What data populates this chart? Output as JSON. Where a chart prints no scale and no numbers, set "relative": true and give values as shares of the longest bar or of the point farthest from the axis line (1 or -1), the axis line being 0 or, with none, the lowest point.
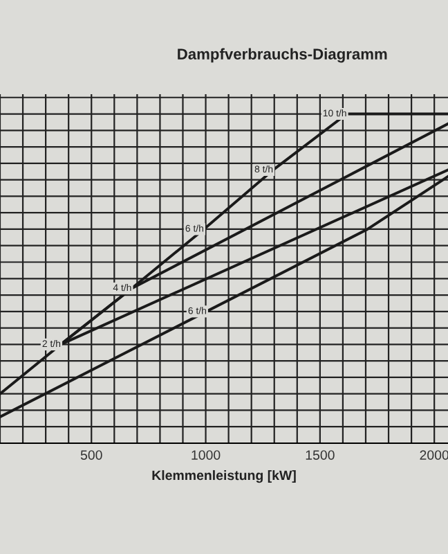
{
  "chart_data": {
    "type": "line",
    "title": "Dampfverbrauchs-Diagramm",
    "xlabel": "Klemmenleistung [kW]",
    "relative": true,
    "grid": true,
    "legend": false,
    "marker": "none",
    "line_style": "solid",
    "xlim": [
      100,
      2060
    ],
    "xticks": [
      {
        "value": 100,
        "label": null
      },
      {
        "value": 200,
        "label": null
      },
      {
        "value": 300,
        "label": null
      },
      {
        "value": 400,
        "label": null
      },
      500,
      {
        "value": 600,
        "label": null
      },
      {
        "value": 700,
        "label": null
      },
      {
        "value": 800,
        "label": null
      },
      {
        "value": 900,
        "label": null
      },
      1000,
      {
        "value": 1100,
        "label": null
      },
      {
        "value": 1200,
        "label": null
      },
      {
        "value": 1300,
        "label": null
      },
      {
        "value": 1400,
        "label": null
      },
      1500,
      {
        "value": 1600,
        "label": null
      },
      {
        "value": 1700,
        "label": null
      },
      {
        "value": 1800,
        "label": null
      },
      {
        "value": 1900,
        "label": null
      },
      2000
    ],
    "series": [
      {
        "color": "#1a1a1a",
        "x": [
          100,
          366,
          676,
          992,
          1295,
          1617,
          2060
        ],
        "values": [
          0.15,
          0.3,
          0.47,
          0.65,
          0.83,
          1.0,
          1.0
        ]
      },
      {
        "color": "#1a1a1a",
        "x": [
          366,
          676,
          2060
        ],
        "values": [
          0.3,
          0.47,
          0.97
        ]
      },
      {
        "color": "#1a1a1a",
        "x": [
          366,
          2060
        ],
        "values": [
          0.3,
          0.83
        ]
      },
      {
        "color": "#1a1a1a",
        "x": [
          100,
          1708,
          2060
        ],
        "values": [
          0.08,
          0.65,
          0.81
        ]
      }
    ],
    "annotations": [
      {
        "text": "2 t/h",
        "x": 366,
        "y": 0.3
      },
      {
        "text": "4 t/h",
        "x": 676,
        "y": 0.47
      },
      {
        "text": "6 t/h",
        "x": 992,
        "y": 0.65
      },
      {
        "text": "8 t/h",
        "x": 1295,
        "y": 0.83
      },
      {
        "text": "10 t/h",
        "x": 1617,
        "y": 1.0
      },
      {
        "text": "6 t/h",
        "x": 1004,
        "y": 0.4
      }
    ]
  }
}
